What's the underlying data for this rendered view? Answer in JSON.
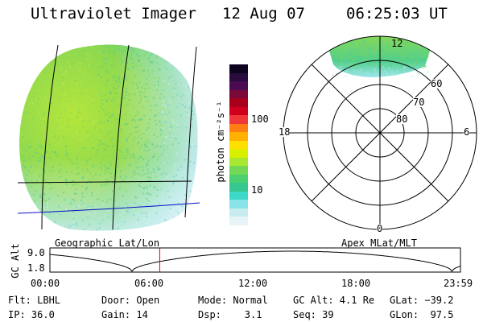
{
  "header": {
    "title": "Ultraviolet Imager",
    "date": "12 Aug 07",
    "time": "06:25:03 UT"
  },
  "colorbar": {
    "label": "photon cm⁻²s⁻¹",
    "tick_labels": [
      "100",
      "10"
    ],
    "colors": [
      "#0d0520",
      "#2a0b3d",
      "#4a0b52",
      "#7a0838",
      "#a8001c",
      "#d0001c",
      "#f0383a",
      "#ff7e14",
      "#ffb000",
      "#ffe000",
      "#d8f000",
      "#a8e830",
      "#72d856",
      "#4ad070",
      "#36c890",
      "#3cd8c8",
      "#88e4e8",
      "#c6ecf0",
      "#e8f4f8"
    ]
  },
  "labels": {
    "geo": "Geographic Lat/Lon",
    "apex": "Apex MLat/MLT"
  },
  "polar": {
    "hour_labels": {
      "top": "12",
      "left": "18",
      "right": "6",
      "bottom": "0"
    },
    "lat_labels": [
      "60",
      "70",
      "80"
    ]
  },
  "altitude_plot": {
    "ylabel": "GC Alt",
    "yticks": [
      "9.0",
      "1.8"
    ],
    "xticks": [
      "00:00",
      "06:00",
      "12:00",
      "18:00",
      "23:59"
    ],
    "current_time_hours": 6.42
  },
  "footer": {
    "col1": [
      "Flt: LBHL",
      "IP: 36.0"
    ],
    "col2": [
      "Door: Open",
      "Gain: 14"
    ],
    "col3": [
      "Mode: Normal",
      "Dsp:    3.1"
    ],
    "col4": [
      "GC Alt: 4.1 Re",
      "Seq: 39"
    ],
    "col5": [
      "GLat: −39.2",
      "GLon:  97.5"
    ]
  }
}
